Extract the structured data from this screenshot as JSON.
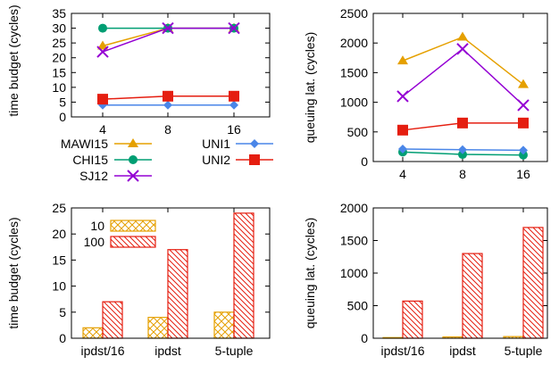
{
  "chart_data": [
    {
      "id": "tl",
      "type": "line",
      "ylabel": "time budget (cycles)",
      "x": [
        "4",
        "8",
        "16"
      ],
      "ylim": [
        0,
        35
      ],
      "yticks": [
        "0",
        "5",
        "10",
        "15",
        "20",
        "25",
        "30",
        "35"
      ],
      "series": [
        {
          "name": "MAWI15",
          "color": "#e5a000",
          "marker": "triangle",
          "values": [
            24,
            30,
            30
          ]
        },
        {
          "name": "CHI15",
          "color": "#009e73",
          "marker": "circle",
          "values": [
            30,
            30,
            30
          ]
        },
        {
          "name": "SJ12",
          "color": "#9400d3",
          "marker": "x",
          "values": [
            22,
            30,
            30
          ]
        },
        {
          "name": "UNI1",
          "color": "#4a86e8",
          "marker": "diamond",
          "values": [
            4,
            4,
            4
          ]
        },
        {
          "name": "UNI2",
          "color": "#e51e10",
          "marker": "square",
          "values": [
            6,
            7,
            7
          ]
        }
      ]
    },
    {
      "id": "tr",
      "type": "line",
      "ylabel": "queuing lat. (cycles)",
      "x": [
        "4",
        "8",
        "16"
      ],
      "ylim": [
        0,
        2500
      ],
      "yticks": [
        "0",
        "500",
        "1000",
        "1500",
        "2000",
        "2500"
      ],
      "series": [
        {
          "name": "MAWI15",
          "color": "#e5a000",
          "marker": "triangle",
          "values": [
            1700,
            2100,
            1300
          ]
        },
        {
          "name": "CHI15",
          "color": "#009e73",
          "marker": "circle",
          "values": [
            160,
            120,
            110
          ]
        },
        {
          "name": "SJ12",
          "color": "#9400d3",
          "marker": "x",
          "values": [
            1100,
            1900,
            950
          ]
        },
        {
          "name": "UNI1",
          "color": "#4a86e8",
          "marker": "diamond",
          "values": [
            210,
            200,
            190
          ]
        },
        {
          "name": "UNI2",
          "color": "#e51e10",
          "marker": "square",
          "values": [
            530,
            650,
            650
          ]
        }
      ]
    },
    {
      "id": "bl",
      "type": "bar",
      "ylabel": "time budget (cycles)",
      "categories": [
        "ipdst/16",
        "ipdst",
        "5-tuple"
      ],
      "ylim": [
        0,
        25
      ],
      "yticks": [
        "0",
        "5",
        "10",
        "15",
        "20",
        "25"
      ],
      "series": [
        {
          "name": "10",
          "color": "#e5a000",
          "pattern": "crosshatch",
          "values": [
            2,
            4,
            5
          ]
        },
        {
          "name": "100",
          "color": "#e51e10",
          "pattern": "diagonal",
          "values": [
            7,
            17,
            24
          ]
        }
      ]
    },
    {
      "id": "br",
      "type": "bar",
      "ylabel": "queuing lat. (cycles)",
      "categories": [
        "ipdst/16",
        "ipdst",
        "5-tuple"
      ],
      "ylim": [
        0,
        2000
      ],
      "yticks": [
        "0",
        "500",
        "1000",
        "1500",
        "2000"
      ],
      "series": [
        {
          "name": "10",
          "color": "#e5a000",
          "pattern": "crosshatch",
          "values": [
            10,
            20,
            25
          ]
        },
        {
          "name": "100",
          "color": "#e51e10",
          "pattern": "diagonal",
          "values": [
            570,
            1300,
            1700
          ]
        }
      ]
    }
  ]
}
